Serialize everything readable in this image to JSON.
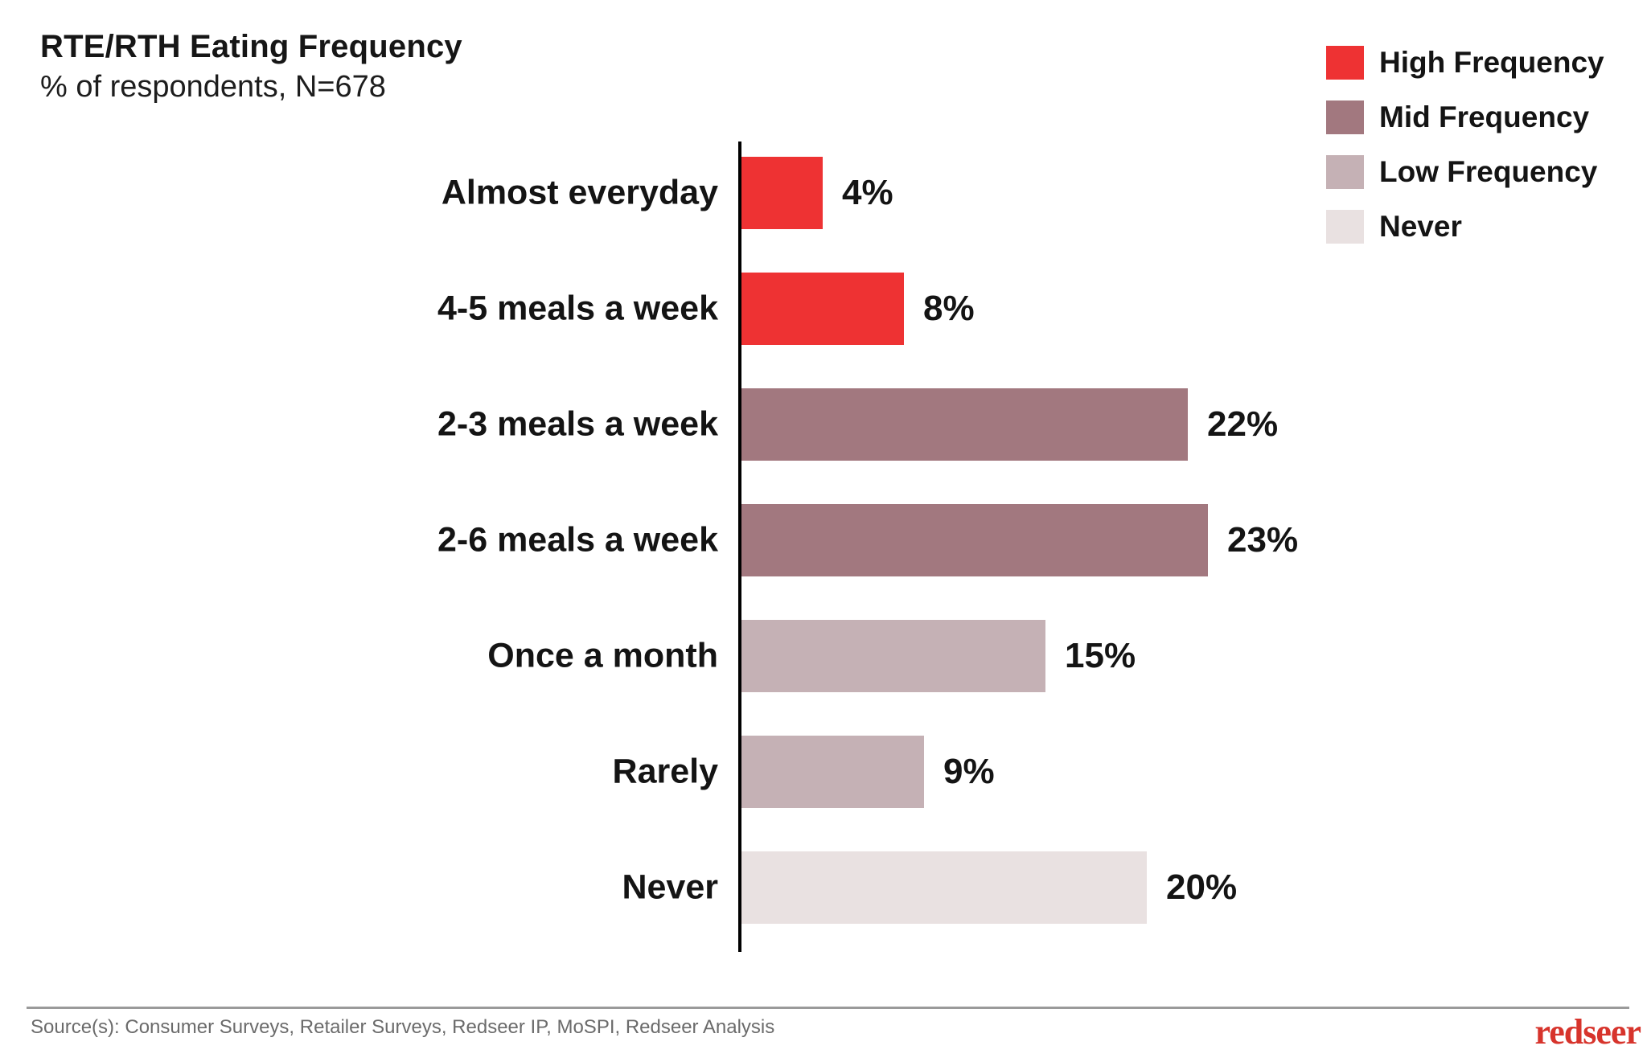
{
  "header": {
    "title": "RTE/RTH Eating Frequency",
    "subtitle": "% of respondents, N=678"
  },
  "legend": [
    {
      "label": "High Frequency",
      "color": "#ee3233",
      "icon": "red-swatch"
    },
    {
      "label": "Mid Frequency",
      "color": "#a2787f",
      "icon": "mauve-swatch"
    },
    {
      "label": "Low Frequency",
      "color": "#c5b1b5",
      "icon": "light-mauve-swatch"
    },
    {
      "label": "Never",
      "color": "#e9e1e1",
      "icon": "pale-pink-swatch"
    }
  ],
  "chart_data": {
    "type": "bar",
    "orientation": "horizontal",
    "title": "RTE/RTH Eating Frequency",
    "subtitle": "% of respondents, N=678",
    "categories": [
      "Almost everyday",
      "4-5 meals a week",
      "2-3 meals a week",
      "2-6 meals a week",
      "Once a month",
      "Rarely",
      "Never"
    ],
    "values": [
      4,
      8,
      22,
      23,
      15,
      9,
      20
    ],
    "value_labels": [
      "4%",
      "8%",
      "22%",
      "23%",
      "15%",
      "9%",
      "20%"
    ],
    "series_group": [
      "High Frequency",
      "High Frequency",
      "Mid Frequency",
      "Mid Frequency",
      "Low Frequency",
      "Low Frequency",
      "Never"
    ],
    "bar_colors": [
      "#ee3233",
      "#ee3233",
      "#a2787f",
      "#a2787f",
      "#c5b1b5",
      "#c5b1b5",
      "#e9e1e1"
    ],
    "xlim": [
      0,
      23
    ],
    "grid": false,
    "legend_position": "top-right",
    "axis_color": "#000000"
  },
  "footer": {
    "source": "Source(s): Consumer Surveys, Retailer Surveys, Redseer IP, MoSPI, Redseer Analysis",
    "logo": "redseer",
    "logo_color": "#d7342c"
  }
}
